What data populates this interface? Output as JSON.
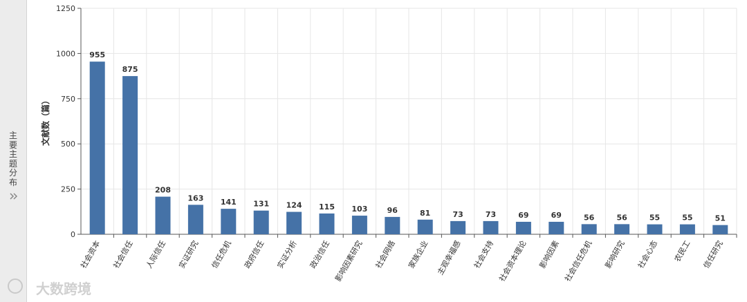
{
  "sidebar": {
    "label": "主要主题分布"
  },
  "watermark": "大数跨境",
  "chart_data": {
    "type": "bar",
    "y_label": "文献数（篇）",
    "categories": [
      "社会资本",
      "社会信任",
      "人际信任",
      "实证研究",
      "信任危机",
      "政府信任",
      "实证分析",
      "政治信任",
      "影响因素研究",
      "社会网络",
      "家族企业",
      "主观幸福感",
      "社会支持",
      "社会资本理论",
      "影响因素",
      "社会信任危机",
      "影响研究",
      "社会心态",
      "农民工",
      "信任研究"
    ],
    "values": [
      955,
      875,
      208,
      163,
      141,
      131,
      124,
      115,
      103,
      96,
      81,
      73,
      73,
      69,
      69,
      56,
      56,
      55,
      55,
      51
    ],
    "color": "#4572a7",
    "ylim": [
      0,
      1250
    ],
    "yticks": [
      0,
      250,
      500,
      750,
      1000,
      1250
    ],
    "grid": true
  }
}
